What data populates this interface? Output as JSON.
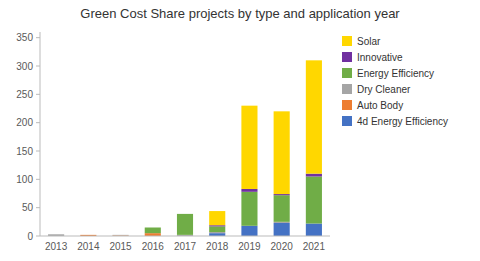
{
  "chart_data": {
    "type": "bar",
    "stacked": true,
    "title": "Green Cost Share projects by type and application year",
    "categories": [
      "2013",
      "2014",
      "2015",
      "2016",
      "2017",
      "2018",
      "2019",
      "2020",
      "2021"
    ],
    "series": [
      {
        "name": "4d Energy Efficiency",
        "color": "#4472C4",
        "values": [
          0,
          0,
          0,
          0,
          0,
          5,
          18,
          23,
          22
        ]
      },
      {
        "name": "Auto Body",
        "color": "#ED7D31",
        "values": [
          0,
          2,
          1,
          5,
          0,
          0,
          0,
          0,
          0
        ]
      },
      {
        "name": "Dry Cleaner",
        "color": "#A5A5A5",
        "values": [
          3,
          0,
          1,
          0,
          2,
          2,
          0,
          2,
          0
        ]
      },
      {
        "name": "Energy Efficiency",
        "color": "#70AD47",
        "values": [
          0,
          0,
          0,
          10,
          37,
          10,
          60,
          47,
          83
        ]
      },
      {
        "name": "Innovative",
        "color": "#7030A0",
        "values": [
          0,
          0,
          0,
          0,
          0,
          2,
          5,
          2,
          5
        ]
      },
      {
        "name": "Solar",
        "color": "#FFD700",
        "values": [
          0,
          0,
          0,
          0,
          0,
          25,
          147,
          146,
          200
        ]
      }
    ],
    "ylim": [
      0,
      360
    ],
    "yticks": [
      0,
      50,
      100,
      150,
      200,
      250,
      300,
      350
    ],
    "grid": false,
    "legend": "upper right"
  }
}
